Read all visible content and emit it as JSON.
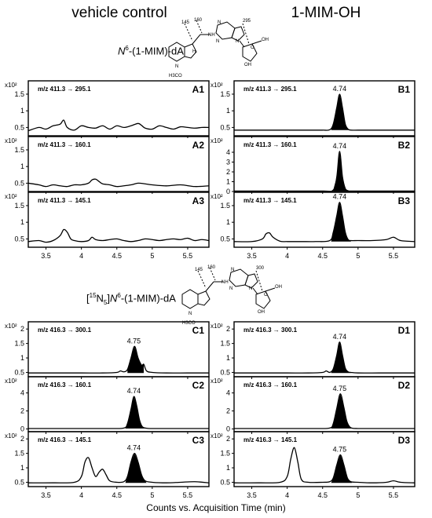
{
  "columns": {
    "left_title": "vehicle control",
    "right_title": "1-MIM-OH"
  },
  "compounds": {
    "top": {
      "prefix": "N",
      "sup": "6",
      "suffix": "-(1-MIM)-dA"
    },
    "bottom": {
      "iso": "[",
      "iso_sup": "15",
      "iso_mid": "N",
      "iso_sub": "5",
      "iso_close": "]",
      "prefix": "N",
      "sup": "6",
      "suffix": "-(1-MIM)-dA"
    },
    "top_structure_labels": [
      "145",
      "160",
      "295",
      "N",
      "NH",
      "N",
      "N",
      "O",
      "OH",
      "OH",
      "H",
      "N",
      "H3CO"
    ],
    "bottom_structure_labels": [
      "145",
      "160",
      "300",
      "N",
      "NH",
      "N",
      "N",
      "O",
      "OH",
      "OH",
      "N",
      "H3CO"
    ]
  },
  "x_axis_title": "Counts vs. Acquisition Time (min)",
  "chart_data": [
    {
      "id": "A1",
      "type": "line",
      "transition": "m/z 411.3 → 295.1",
      "yunit": "x10²",
      "yticks": [
        "0.5",
        "1",
        "1.5"
      ],
      "ylim": [
        0.25,
        1.9
      ],
      "xlim": [
        3.25,
        5.8
      ],
      "xticks": [],
      "peak_label": "",
      "x": [
        3.25,
        3.4,
        3.5,
        3.6,
        3.7,
        3.75,
        3.8,
        3.9,
        4.0,
        4.1,
        4.2,
        4.3,
        4.4,
        4.5,
        4.6,
        4.7,
        4.8,
        4.85,
        4.9,
        5.0,
        5.1,
        5.2,
        5.3,
        5.4,
        5.5,
        5.6,
        5.7,
        5.8
      ],
      "y": [
        0.4,
        0.5,
        0.45,
        0.55,
        0.6,
        0.72,
        0.5,
        0.42,
        0.55,
        0.5,
        0.48,
        0.55,
        0.45,
        0.55,
        0.5,
        0.55,
        0.62,
        0.56,
        0.48,
        0.45,
        0.55,
        0.5,
        0.45,
        0.52,
        0.5,
        0.48,
        0.5,
        0.5
      ]
    },
    {
      "id": "A2",
      "type": "line",
      "transition": "m/z 411.3 → 160.1",
      "yunit": "x10²",
      "yticks": [
        "0.5",
        "1",
        "1.5"
      ],
      "ylim": [
        0.25,
        1.9
      ],
      "xlim": [
        3.25,
        5.8
      ],
      "xticks": [],
      "peak_label": "",
      "x": [
        3.25,
        3.4,
        3.5,
        3.6,
        3.7,
        3.8,
        3.9,
        4.0,
        4.1,
        4.15,
        4.2,
        4.25,
        4.3,
        4.4,
        4.5,
        4.6,
        4.7,
        4.8,
        4.9,
        5.0,
        5.2,
        5.4,
        5.6,
        5.8
      ],
      "y": [
        0.5,
        0.45,
        0.4,
        0.45,
        0.42,
        0.4,
        0.45,
        0.45,
        0.5,
        0.6,
        0.62,
        0.55,
        0.48,
        0.45,
        0.4,
        0.42,
        0.45,
        0.5,
        0.48,
        0.45,
        0.42,
        0.45,
        0.4,
        0.42
      ]
    },
    {
      "id": "A3",
      "type": "line",
      "transition": "m/z 411.3 → 145.1",
      "yunit": "x10²",
      "yticks": [
        "0.5",
        "1",
        "1.5"
      ],
      "ylim": [
        0.25,
        1.9
      ],
      "xlim": [
        3.25,
        5.8
      ],
      "xticks": [
        "3.5",
        "4",
        "4.5",
        "5",
        "5.5"
      ],
      "peak_label": "",
      "x": [
        3.25,
        3.4,
        3.5,
        3.6,
        3.7,
        3.75,
        3.8,
        3.85,
        3.9,
        4.0,
        4.1,
        4.15,
        4.2,
        4.3,
        4.4,
        4.5,
        4.6,
        4.7,
        4.8,
        4.9,
        5.0,
        5.1,
        5.2,
        5.3,
        5.4,
        5.5,
        5.6,
        5.7,
        5.8
      ],
      "y": [
        0.42,
        0.45,
        0.4,
        0.45,
        0.6,
        0.78,
        0.7,
        0.5,
        0.45,
        0.42,
        0.45,
        0.55,
        0.48,
        0.45,
        0.48,
        0.5,
        0.45,
        0.42,
        0.45,
        0.5,
        0.48,
        0.45,
        0.48,
        0.5,
        0.48,
        0.52,
        0.45,
        0.48,
        0.45
      ]
    },
    {
      "id": "B1",
      "type": "line",
      "transition": "m/z 411.3 → 295.1",
      "yunit": "x10²",
      "yticks": [
        "0.5",
        "1",
        "1.5"
      ],
      "ylim": [
        0.25,
        1.9
      ],
      "xlim": [
        3.25,
        5.8
      ],
      "xticks": [],
      "peak_label": "4.74",
      "x": [
        3.25,
        3.5,
        3.8,
        4.0,
        4.3,
        4.5,
        4.6,
        4.65,
        4.7,
        4.74,
        4.78,
        4.82,
        4.86,
        4.9,
        5.0,
        5.2,
        5.4,
        5.6,
        5.8
      ],
      "y": [
        0.42,
        0.42,
        0.42,
        0.42,
        0.42,
        0.42,
        0.43,
        0.6,
        1.1,
        1.5,
        1.1,
        0.6,
        0.45,
        0.42,
        0.42,
        0.42,
        0.42,
        0.42,
        0.42
      ],
      "fill": [
        4.62,
        4.9
      ]
    },
    {
      "id": "B2",
      "type": "line",
      "transition": "m/z 411.3 → 160.1",
      "yunit": "x10²",
      "yticks": [
        "0",
        "1",
        "2",
        "3",
        "4"
      ],
      "ylim": [
        0,
        5.6
      ],
      "xlim": [
        3.25,
        5.8
      ],
      "xticks": [],
      "peak_label": "4.74",
      "x": [
        3.25,
        3.5,
        4.0,
        4.5,
        4.65,
        4.7,
        4.74,
        4.78,
        4.82,
        4.86,
        4.9,
        5.2,
        5.5,
        5.8
      ],
      "y": [
        0.05,
        0.05,
        0.05,
        0.05,
        0.15,
        1.5,
        4.1,
        1.5,
        0.3,
        0.08,
        0.05,
        0.05,
        0.05,
        0.05
      ],
      "fill": [
        4.65,
        4.9
      ]
    },
    {
      "id": "B3",
      "type": "line",
      "transition": "m/z 411.3 → 145.1",
      "yunit": "x10²",
      "yticks": [
        "0.5",
        "1",
        "1.5"
      ],
      "ylim": [
        0.25,
        1.9
      ],
      "xlim": [
        3.25,
        5.8
      ],
      "xticks": [
        "3.5",
        "4",
        "4.5",
        "5",
        "5.5"
      ],
      "peak_label": "4.74",
      "x": [
        3.25,
        3.5,
        3.65,
        3.7,
        3.75,
        3.8,
        3.9,
        4.0,
        4.2,
        4.4,
        4.6,
        4.65,
        4.7,
        4.74,
        4.78,
        4.82,
        4.86,
        4.9,
        5.0,
        5.2,
        5.4,
        5.5,
        5.6,
        5.8
      ],
      "y": [
        0.42,
        0.42,
        0.5,
        0.65,
        0.68,
        0.55,
        0.43,
        0.42,
        0.42,
        0.42,
        0.45,
        0.7,
        1.2,
        1.6,
        1.2,
        0.7,
        0.48,
        0.45,
        0.45,
        0.45,
        0.48,
        0.55,
        0.45,
        0.42
      ],
      "fill": [
        4.62,
        4.9
      ]
    },
    {
      "id": "C1",
      "type": "line",
      "transition": "m/z 416.3 → 300.1",
      "yunit": "x10²",
      "yticks": [
        "0.5",
        "1",
        "1.5",
        "2"
      ],
      "ylim": [
        0.35,
        2.25
      ],
      "xlim": [
        3.25,
        5.8
      ],
      "xticks": [],
      "peak_label": "4.75",
      "x": [
        3.25,
        3.6,
        4.0,
        4.3,
        4.5,
        4.55,
        4.6,
        4.65,
        4.7,
        4.75,
        4.8,
        4.85,
        4.88,
        4.92,
        5.0,
        5.2,
        5.5,
        5.8
      ],
      "y": [
        0.48,
        0.48,
        0.48,
        0.48,
        0.5,
        0.55,
        0.52,
        0.6,
        1.0,
        1.4,
        1.0,
        0.75,
        0.78,
        0.55,
        0.5,
        0.48,
        0.48,
        0.48
      ],
      "fill": [
        4.65,
        4.88
      ]
    },
    {
      "id": "C2",
      "type": "line",
      "transition": "m/z 416.3 → 160.1",
      "yunit": "x10²",
      "yticks": [
        "0",
        "2",
        "4"
      ],
      "ylim": [
        -0.3,
        5.8
      ],
      "xlim": [
        3.25,
        5.8
      ],
      "xticks": [],
      "peak_label": "4.74",
      "x": [
        3.25,
        3.6,
        4.0,
        4.4,
        4.6,
        4.65,
        4.7,
        4.74,
        4.78,
        4.82,
        4.86,
        4.92,
        5.0,
        5.3,
        5.8
      ],
      "y": [
        0.05,
        0.05,
        0.05,
        0.05,
        0.1,
        0.6,
        2.2,
        3.6,
        2.6,
        1.0,
        0.25,
        0.08,
        0.05,
        0.05,
        0.05
      ],
      "fill": [
        4.62,
        4.95
      ]
    },
    {
      "id": "C3",
      "type": "line",
      "transition": "m/z 416.3 → 145.1",
      "yunit": "x10²",
      "yticks": [
        "0.5",
        "1",
        "1.5",
        "2"
      ],
      "ylim": [
        0.35,
        2.25
      ],
      "xlim": [
        3.25,
        5.8
      ],
      "xticks": [
        "3.5",
        "4",
        "4.5",
        "5",
        "5.5"
      ],
      "peak_label": "4.74",
      "x": [
        3.25,
        3.6,
        3.9,
        4.0,
        4.05,
        4.1,
        4.15,
        4.2,
        4.25,
        4.3,
        4.35,
        4.4,
        4.5,
        4.6,
        4.65,
        4.7,
        4.75,
        4.8,
        4.85,
        4.9,
        5.0,
        5.2,
        5.4,
        5.6,
        5.8
      ],
      "y": [
        0.48,
        0.48,
        0.5,
        0.7,
        1.2,
        1.35,
        1.0,
        0.7,
        0.85,
        0.95,
        0.75,
        0.55,
        0.5,
        0.52,
        0.7,
        1.2,
        1.5,
        1.2,
        0.75,
        0.55,
        0.5,
        0.48,
        0.5,
        0.52,
        0.48
      ],
      "fill": [
        4.62,
        4.92
      ]
    },
    {
      "id": "D1",
      "type": "line",
      "transition": "m/z 416.3 → 300.1",
      "yunit": "x10²",
      "yticks": [
        "0.5",
        "1",
        "1.5",
        "2"
      ],
      "ylim": [
        0.35,
        2.25
      ],
      "xlim": [
        3.25,
        5.8
      ],
      "xticks": [],
      "peak_label": "4.74",
      "x": [
        3.25,
        3.6,
        4.0,
        4.3,
        4.5,
        4.55,
        4.6,
        4.65,
        4.7,
        4.74,
        4.78,
        4.82,
        4.86,
        4.9,
        5.0,
        5.3,
        5.6,
        5.8
      ],
      "y": [
        0.48,
        0.48,
        0.48,
        0.48,
        0.5,
        0.55,
        0.5,
        0.62,
        1.1,
        1.55,
        1.1,
        0.65,
        0.52,
        0.5,
        0.48,
        0.48,
        0.48,
        0.48
      ],
      "fill": [
        4.62,
        4.9
      ]
    },
    {
      "id": "D2",
      "type": "line",
      "transition": "m/z 416.3 → 160.1",
      "yunit": "x10²",
      "yticks": [
        "0",
        "2",
        "4"
      ],
      "ylim": [
        -0.3,
        5.8
      ],
      "xlim": [
        3.25,
        5.8
      ],
      "xticks": [],
      "peak_label": "4.75",
      "x": [
        3.25,
        3.6,
        4.0,
        4.4,
        4.6,
        4.65,
        4.7,
        4.75,
        4.8,
        4.84,
        4.88,
        4.92,
        5.0,
        5.3,
        5.8
      ],
      "y": [
        0.05,
        0.05,
        0.05,
        0.05,
        0.1,
        0.6,
        2.3,
        3.9,
        2.4,
        0.9,
        0.25,
        0.08,
        0.05,
        0.05,
        0.05
      ],
      "fill": [
        4.62,
        4.95
      ]
    },
    {
      "id": "D3",
      "type": "line",
      "transition": "m/z 416.3 → 145.1",
      "yunit": "x10²",
      "yticks": [
        "0.5",
        "1",
        "1.5",
        "2"
      ],
      "ylim": [
        0.35,
        2.25
      ],
      "xlim": [
        3.25,
        5.8
      ],
      "xticks": [
        "3.5",
        "4",
        "4.5",
        "5",
        "5.5"
      ],
      "peak_label": "4.75",
      "x": [
        3.25,
        3.6,
        3.9,
        4.0,
        4.05,
        4.1,
        4.15,
        4.2,
        4.3,
        4.5,
        4.6,
        4.65,
        4.7,
        4.75,
        4.8,
        4.85,
        4.9,
        5.0,
        5.2,
        5.4,
        5.5,
        5.6,
        5.8
      ],
      "y": [
        0.48,
        0.48,
        0.5,
        0.7,
        1.3,
        1.7,
        1.2,
        0.6,
        0.5,
        0.5,
        0.52,
        0.65,
        1.1,
        1.45,
        1.1,
        0.65,
        0.52,
        0.5,
        0.48,
        0.5,
        0.55,
        0.5,
        0.48
      ],
      "fill": [
        4.62,
        4.92
      ]
    }
  ]
}
